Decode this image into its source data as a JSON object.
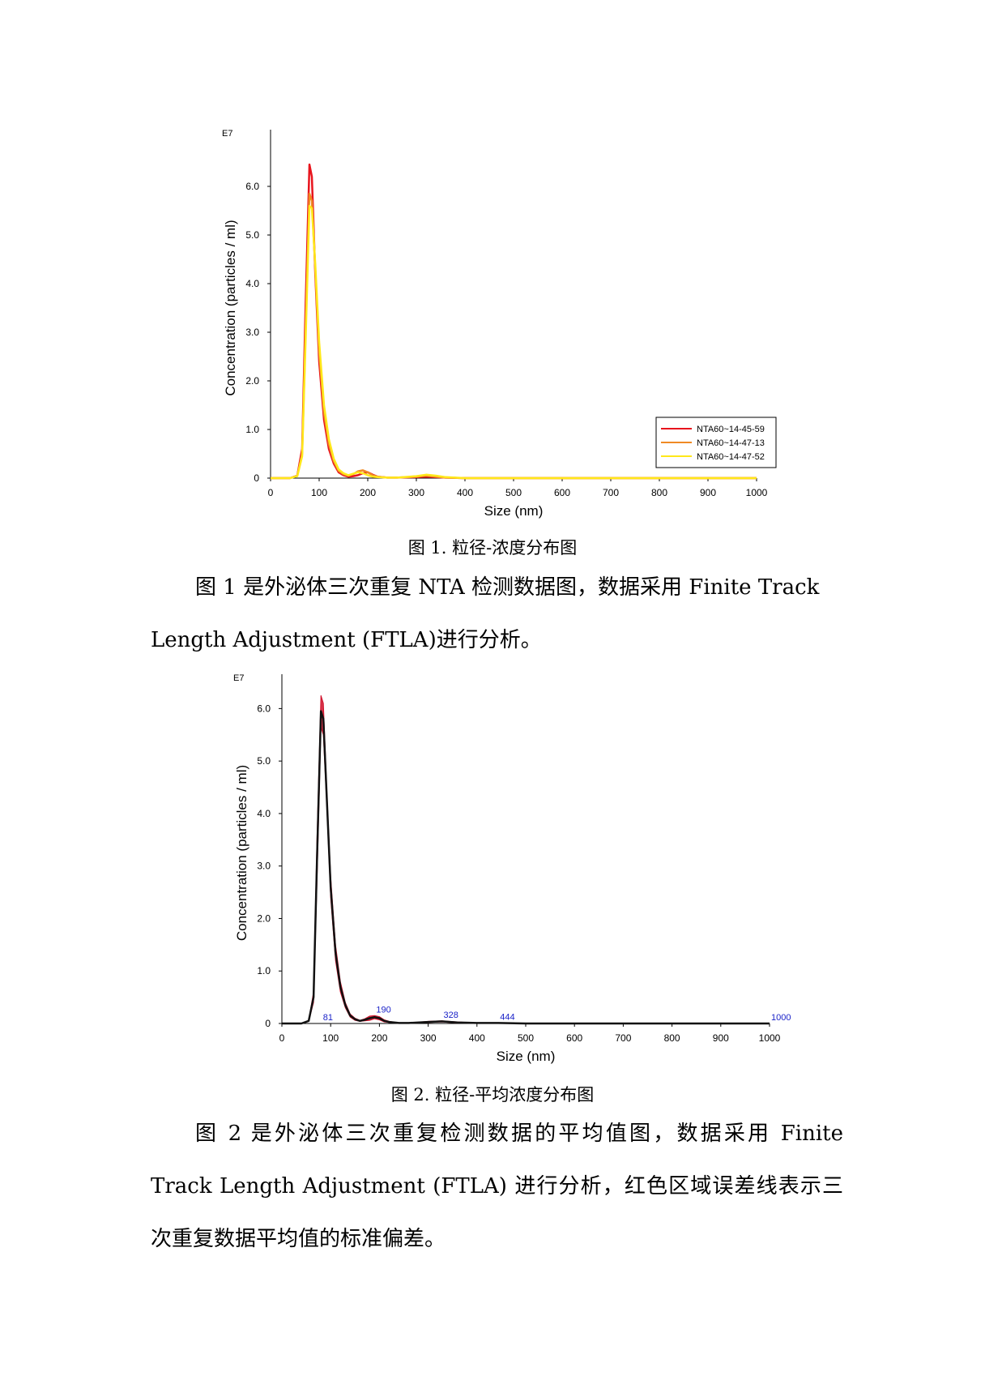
{
  "chart_data": [
    {
      "type": "line",
      "exponent_label": "E7",
      "xlabel": "Size (nm)",
      "ylabel": "Concentration (particles / ml)",
      "xlim": [
        0,
        1000
      ],
      "ylim": [
        0,
        7.0
      ],
      "x_ticks": [
        0,
        100,
        200,
        300,
        400,
        500,
        600,
        700,
        800,
        900,
        1000
      ],
      "y_ticks": [
        0,
        1.0,
        2.0,
        3.0,
        4.0,
        5.0,
        6.0
      ],
      "y_tick_labels": [
        "0",
        "1.0",
        "2.0",
        "3.0",
        "4.0",
        "5.0",
        "6.0"
      ],
      "grid": false,
      "legend_position": "bottom-right",
      "series": [
        {
          "name": "NTA60~14-45-59",
          "color": "#e8141c",
          "x": [
            0,
            40,
            55,
            65,
            72,
            80,
            85,
            92,
            100,
            110,
            120,
            130,
            140,
            150,
            160,
            170,
            180,
            190,
            200,
            210,
            220,
            240,
            260,
            300,
            320,
            340,
            360,
            400,
            500,
            1000
          ],
          "y": [
            0,
            0,
            0.05,
            0.6,
            3.5,
            6.45,
            6.2,
            4.2,
            2.4,
            1.2,
            0.6,
            0.3,
            0.12,
            0.06,
            0.03,
            0.04,
            0.06,
            0.1,
            0.12,
            0.07,
            0.03,
            0.01,
            0.01,
            0.02,
            0.03,
            0.02,
            0.01,
            0,
            0,
            0
          ]
        },
        {
          "name": "NTA60~14-47-13",
          "color": "#f08a24",
          "x": [
            0,
            40,
            55,
            65,
            72,
            80,
            85,
            92,
            100,
            110,
            120,
            130,
            140,
            150,
            160,
            170,
            180,
            190,
            200,
            210,
            220,
            240,
            260,
            300,
            320,
            340,
            360,
            400,
            500,
            1000
          ],
          "y": [
            0,
            0,
            0.05,
            0.5,
            3.0,
            5.85,
            5.7,
            4.3,
            2.6,
            1.35,
            0.7,
            0.35,
            0.15,
            0.08,
            0.05,
            0.08,
            0.14,
            0.16,
            0.12,
            0.06,
            0.03,
            0.01,
            0.01,
            0.03,
            0.05,
            0.03,
            0.01,
            0,
            0,
            0
          ]
        },
        {
          "name": "NTA60~14-47-52",
          "color": "#ffe81a",
          "x": [
            0,
            40,
            55,
            65,
            72,
            80,
            85,
            92,
            100,
            110,
            120,
            130,
            140,
            150,
            160,
            170,
            180,
            190,
            200,
            210,
            220,
            240,
            260,
            300,
            320,
            340,
            360,
            400,
            500,
            1000
          ],
          "y": [
            0,
            0,
            0.04,
            0.45,
            2.8,
            5.6,
            5.55,
            4.4,
            2.8,
            1.5,
            0.8,
            0.4,
            0.18,
            0.1,
            0.06,
            0.09,
            0.12,
            0.1,
            0.06,
            0.03,
            0.02,
            0.01,
            0.01,
            0.04,
            0.07,
            0.05,
            0.02,
            0,
            0,
            0
          ]
        }
      ]
    },
    {
      "type": "area",
      "exponent_label": "E7",
      "xlabel": "Size (nm)",
      "ylabel": "Concentration (particles / ml)",
      "xlim": [
        0,
        1000
      ],
      "ylim": [
        0,
        6.5
      ],
      "x_ticks": [
        0,
        100,
        200,
        300,
        400,
        500,
        600,
        700,
        800,
        900,
        1000
      ],
      "y_ticks": [
        0,
        1.0,
        2.0,
        3.0,
        4.0,
        5.0,
        6.0
      ],
      "y_tick_labels": [
        "0",
        "1.0",
        "2.0",
        "3.0",
        "4.0",
        "5.0",
        "6.0"
      ],
      "grid": false,
      "series": [
        {
          "name": "",
          "color": "#111111",
          "error_color": "#d0102a",
          "x": [
            0,
            40,
            55,
            65,
            72,
            80,
            85,
            92,
            100,
            110,
            120,
            130,
            140,
            150,
            160,
            170,
            180,
            190,
            200,
            210,
            220,
            240,
            260,
            300,
            328,
            360,
            400,
            444,
            500,
            1000
          ],
          "y": [
            0,
            0,
            0.05,
            0.5,
            3.1,
            5.95,
            5.8,
            4.3,
            2.6,
            1.35,
            0.7,
            0.35,
            0.15,
            0.08,
            0.05,
            0.07,
            0.1,
            0.12,
            0.1,
            0.05,
            0.03,
            0.01,
            0.01,
            0.03,
            0.04,
            0.02,
            0.01,
            0.01,
            0,
            0
          ],
          "std": [
            0,
            0,
            0.01,
            0.1,
            0.4,
            0.3,
            0.3,
            0.15,
            0.2,
            0.15,
            0.1,
            0.05,
            0.03,
            0.02,
            0.01,
            0.02,
            0.04,
            0.03,
            0.03,
            0.02,
            0.01,
            0,
            0,
            0.01,
            0.01,
            0.01,
            0,
            0,
            0,
            0
          ]
        }
      ],
      "peak_labels": [
        {
          "x": 81,
          "label": "81"
        },
        {
          "x": 190,
          "label": "190"
        },
        {
          "x": 328,
          "label": "328"
        },
        {
          "x": 444,
          "label": "444"
        },
        {
          "x": 1000,
          "label": "1000"
        }
      ],
      "peak_label_color": "#1a22c8"
    }
  ],
  "captions": {
    "fig1": "图 1. 粒径-浓度分布图",
    "fig2": "图 2. 粒径-平均浓度分布图"
  },
  "paragraphs": {
    "p1_line1": "图 1 是外泌体三次重复 NTA 检测数据图，数据采用 Finite Track",
    "p1_line2": "Length Adjustment (FTLA)进行分析。",
    "p2_line1": "图  2  是外泌体三次重复检测数据的平均值图，数据采用  Finite",
    "p2_line2": "Track  Length  Adjustment  (FTLA)  进行分析，红色区域误差线表示三",
    "p2_line3": "次重复数据平均值的标准偏差。"
  }
}
